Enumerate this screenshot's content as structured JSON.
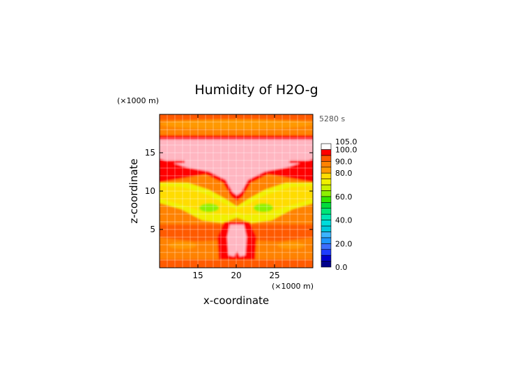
{
  "chart_data": {
    "type": "heatmap",
    "title": "Humidity of H2O-g",
    "time_label": "5280 s",
    "xlabel": "x-coordinate",
    "ylabel": "z-coordinate",
    "x_unit": "(×1000 m)",
    "y_unit": "(×1000 m)",
    "xlim": [
      10,
      30
    ],
    "ylim": [
      0,
      20
    ],
    "x_ticks": [
      "15",
      "20",
      "25"
    ],
    "y_ticks": [
      "5",
      "10",
      "15"
    ],
    "grid": true,
    "colorbar": {
      "tick_labels": [
        "0.0",
        "20.0",
        "40.0",
        "60.0",
        "80.0",
        "90.0",
        "100.0",
        "105.0"
      ],
      "levels": [
        0,
        5,
        10,
        15,
        20,
        25,
        30,
        35,
        40,
        45,
        50,
        55,
        60,
        65,
        70,
        75,
        80,
        85,
        90,
        95,
        100,
        105
      ],
      "colors": [
        "#00008b",
        "#0000cd",
        "#1e3cff",
        "#3c6eff",
        "#1e96ff",
        "#3cb4ff",
        "#00c8dc",
        "#00dcdc",
        "#00e6b4",
        "#00e678",
        "#00dc3c",
        "#32e600",
        "#8cf000",
        "#c8f000",
        "#f0f000",
        "#ffdc00",
        "#ff9900",
        "#ff8200",
        "#ff5a00",
        "#ff0000",
        "#ffffff"
      ]
    },
    "regions": [
      {
        "band": "0–1 km",
        "value": 92
      },
      {
        "band": "1–5 km",
        "value": 90
      },
      {
        "band": "2–5 km core near x=20",
        "value": 102
      },
      {
        "band": "4–7 km",
        "value": 96
      },
      {
        "band": "6.5–11 km",
        "value": 83
      },
      {
        "band": "7–9 km lobes near x=16 and x=24",
        "value": 65
      },
      {
        "band": "11–12.5 km",
        "value": 96
      },
      {
        "band": "12–17 km",
        "value": 102
      },
      {
        "band": "17.5–20 km",
        "value": 90
      }
    ]
  }
}
